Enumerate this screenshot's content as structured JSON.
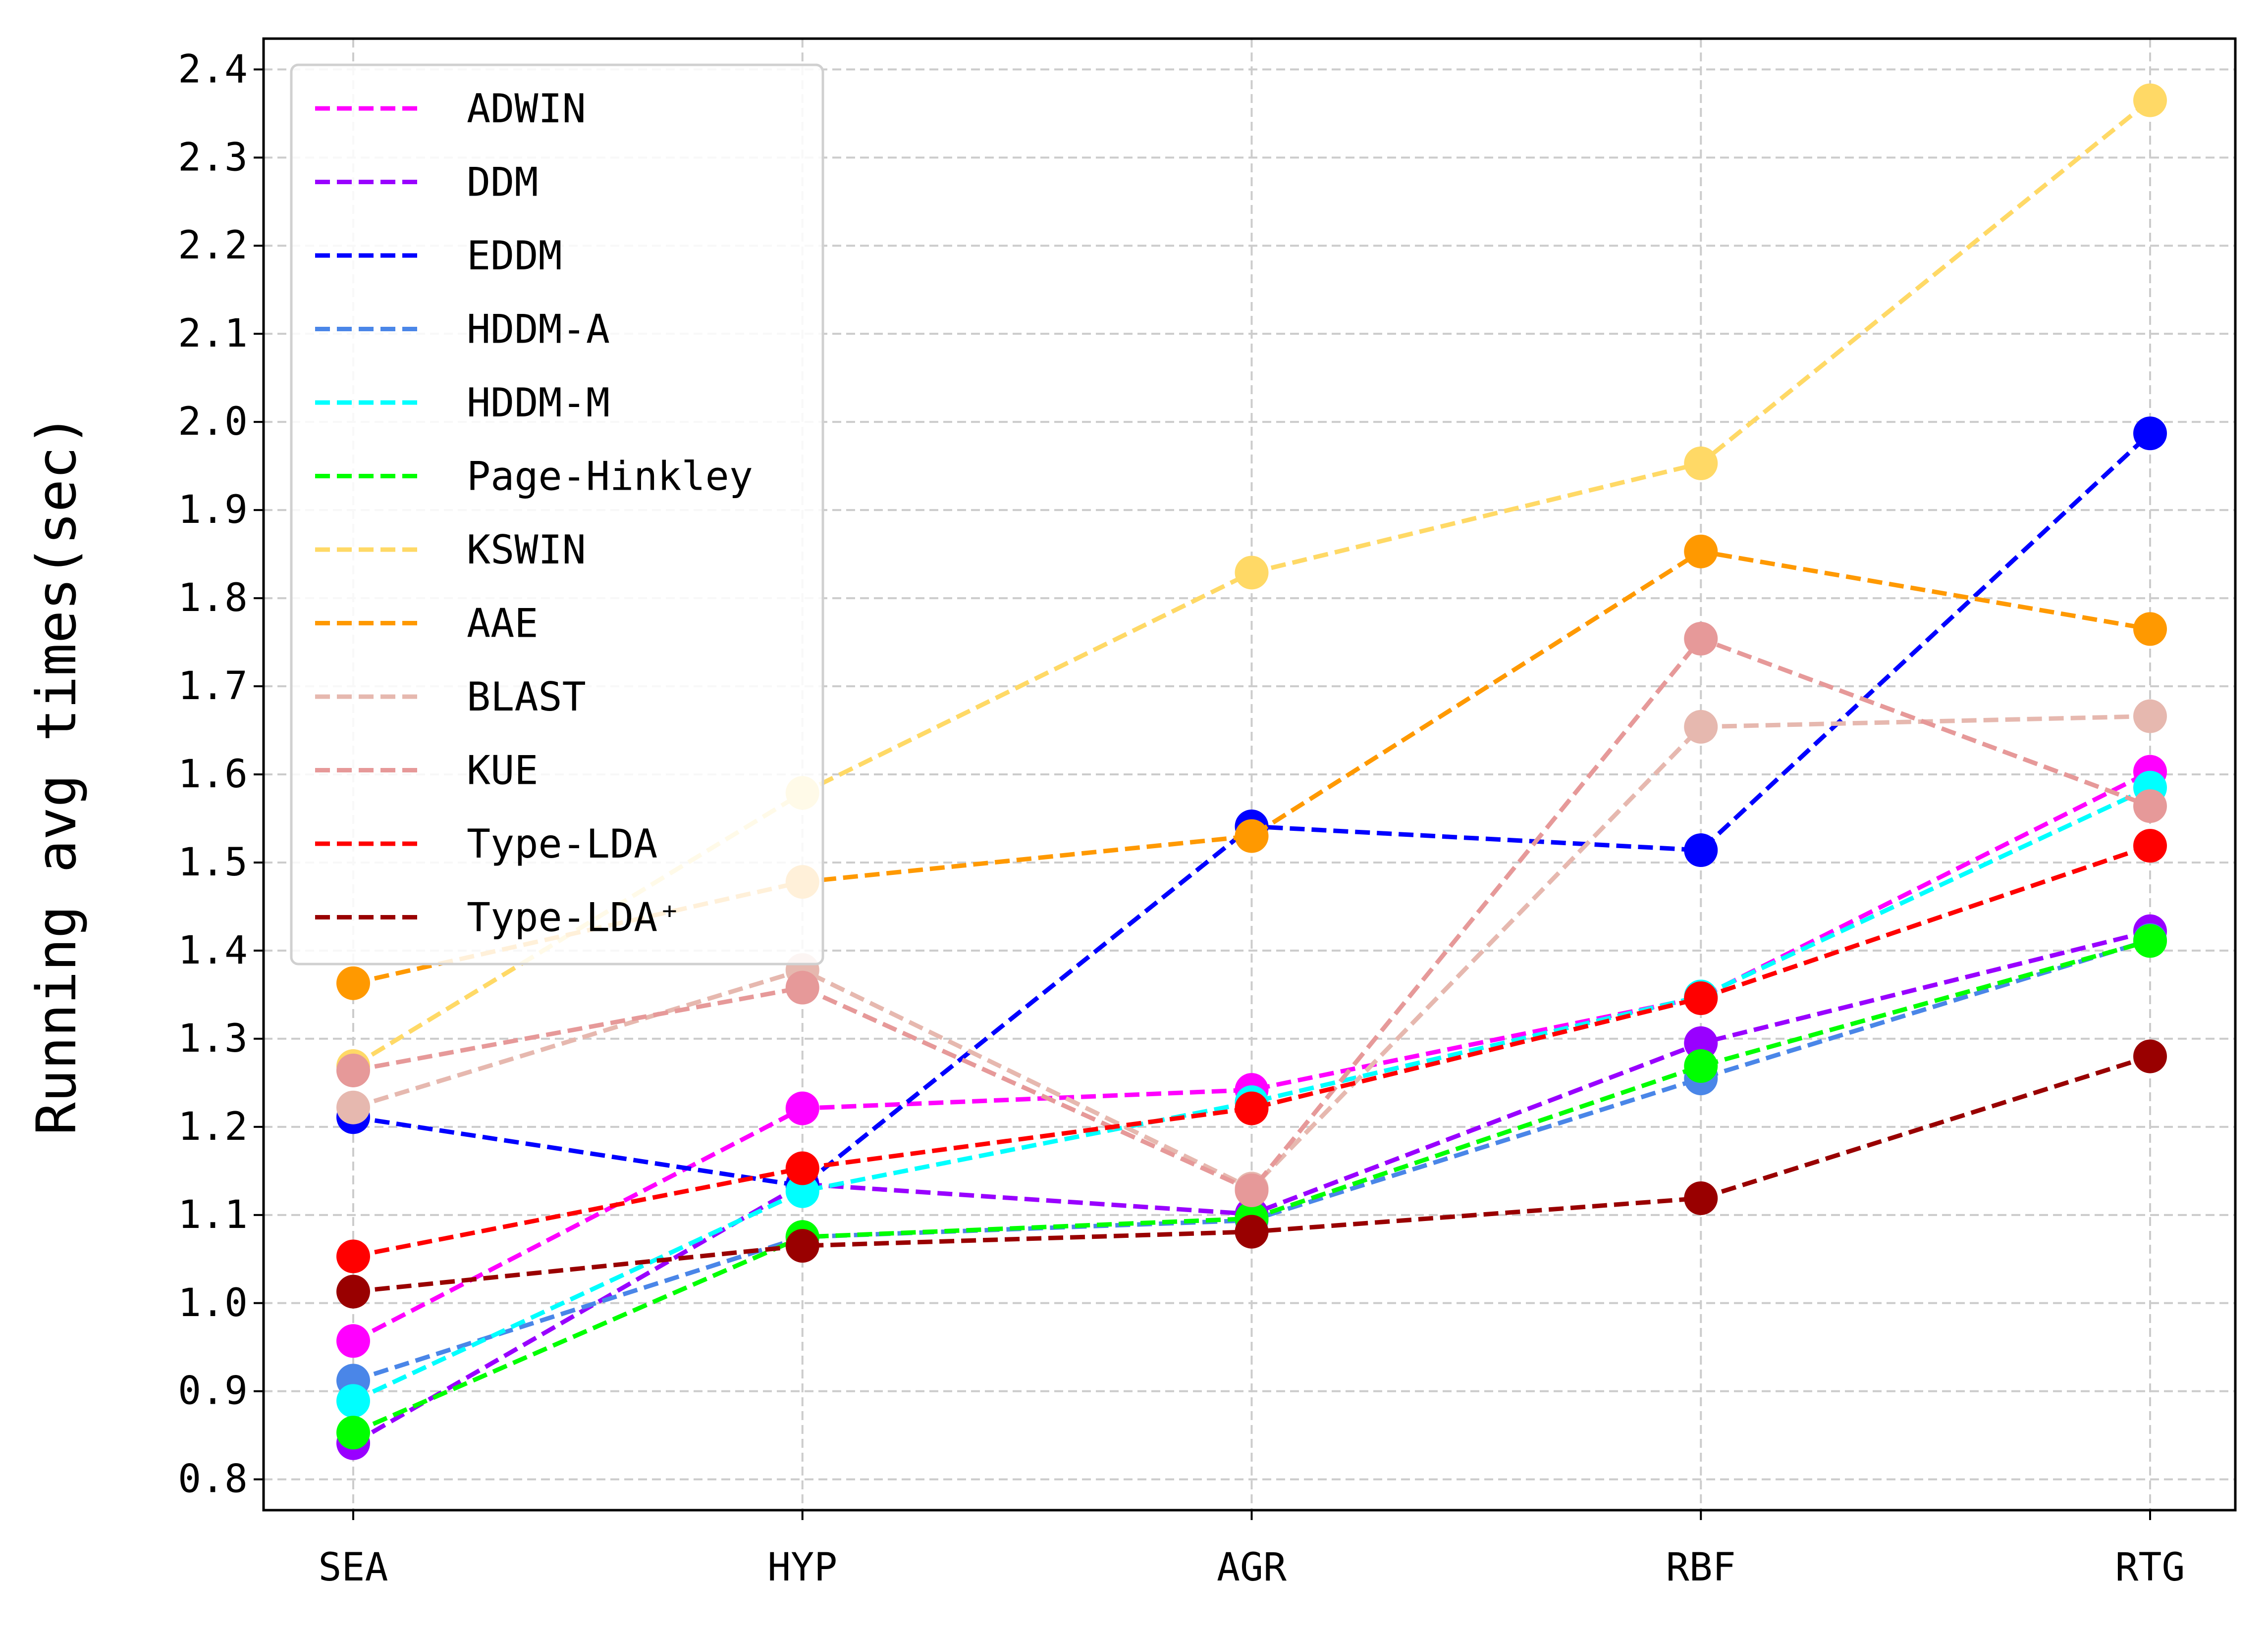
{
  "chart_data": {
    "type": "line",
    "title": "",
    "xlabel": "",
    "ylabel": "Running avg times(sec)",
    "categories": [
      "SEA",
      "HYP",
      "AGR",
      "RBF",
      "RTG"
    ],
    "ylim": [
      0.765,
      2.435
    ],
    "yticks": [
      "0.8",
      "0.9",
      "1.0",
      "1.1",
      "1.2",
      "1.3",
      "1.4",
      "1.5",
      "1.6",
      "1.7",
      "1.8",
      "1.9",
      "2.0",
      "2.1",
      "2.2",
      "2.3",
      "2.4"
    ],
    "grid": true,
    "legend_position": "top-left",
    "series": [
      {
        "name": "ADWIN",
        "color": "#ff00ff",
        "values": [
          0.957,
          1.221,
          1.242,
          1.347,
          1.603
        ]
      },
      {
        "name": "DDM",
        "color": "#9900ff",
        "values": [
          0.841,
          1.135,
          1.101,
          1.295,
          1.422
        ]
      },
      {
        "name": "EDDM",
        "color": "#0000ff",
        "values": [
          1.211,
          1.133,
          1.541,
          1.514,
          1.987
        ]
      },
      {
        "name": "HDDM-A",
        "color": "#4a86e8",
        "values": [
          0.912,
          1.075,
          1.094,
          1.255,
          1.412
        ]
      },
      {
        "name": "HDDM-M",
        "color": "#00ffff",
        "values": [
          0.889,
          1.127,
          1.228,
          1.348,
          1.585
        ]
      },
      {
        "name": "Page-Hinkley",
        "color": "#00ff00",
        "values": [
          0.853,
          1.075,
          1.096,
          1.269,
          1.411
        ]
      },
      {
        "name": "KSWIN",
        "color": "#ffd966",
        "values": [
          1.269,
          1.579,
          1.829,
          1.953,
          2.365
        ]
      },
      {
        "name": "AAE",
        "color": "#ff9900",
        "values": [
          1.363,
          1.478,
          1.53,
          1.853,
          1.765
        ]
      },
      {
        "name": "BLAST",
        "color": "#e6b8af",
        "values": [
          1.222,
          1.378,
          1.13,
          1.654,
          1.666
        ]
      },
      {
        "name": "KUE",
        "color": "#e69999",
        "values": [
          1.264,
          1.358,
          1.128,
          1.754,
          1.564
        ]
      },
      {
        "name": "Type-LDA",
        "color": "#ff0000",
        "values": [
          1.053,
          1.153,
          1.221,
          1.346,
          1.519
        ]
      },
      {
        "name": "Type-LDA⁺",
        "color": "#990000",
        "values": [
          1.013,
          1.065,
          1.081,
          1.119,
          1.28
        ]
      }
    ]
  }
}
